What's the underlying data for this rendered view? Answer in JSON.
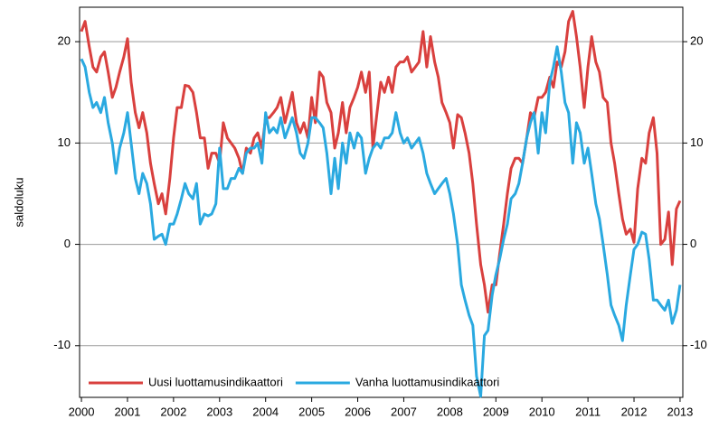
{
  "chart_data": {
    "type": "line",
    "y_label": "saldoluku",
    "xlim": [
      1999.96,
      2013.06
    ],
    "xticks": [
      2000,
      2001,
      2002,
      2003,
      2004,
      2005,
      2006,
      2007,
      2008,
      2009,
      2010,
      2011,
      2012,
      2013
    ],
    "ylim": [
      -15.1,
      23.4
    ],
    "yticks": [
      -10,
      0,
      10,
      20
    ],
    "grid": true,
    "legend": "lower left",
    "x": [
      2000,
      2000.08,
      2000.17,
      2000.25,
      2000.33,
      2000.42,
      2000.5,
      2000.58,
      2000.67,
      2000.75,
      2000.83,
      2000.92,
      2001,
      2001.08,
      2001.17,
      2001.25,
      2001.33,
      2001.42,
      2001.5,
      2001.58,
      2001.67,
      2001.75,
      2001.83,
      2001.92,
      2002,
      2002.08,
      2002.17,
      2002.25,
      2002.33,
      2002.42,
      2002.5,
      2002.58,
      2002.67,
      2002.75,
      2002.83,
      2002.92,
      2003,
      2003.08,
      2003.17,
      2003.25,
      2003.33,
      2003.42,
      2003.5,
      2003.58,
      2003.67,
      2003.75,
      2003.83,
      2003.92,
      2004,
      2004.08,
      2004.17,
      2004.25,
      2004.33,
      2004.42,
      2004.5,
      2004.58,
      2004.67,
      2004.75,
      2004.83,
      2004.92,
      2005,
      2005.08,
      2005.17,
      2005.25,
      2005.33,
      2005.42,
      2005.5,
      2005.58,
      2005.67,
      2005.75,
      2005.83,
      2005.92,
      2006,
      2006.08,
      2006.17,
      2006.25,
      2006.33,
      2006.42,
      2006.5,
      2006.58,
      2006.67,
      2006.75,
      2006.83,
      2006.92,
      2007,
      2007.08,
      2007.17,
      2007.25,
      2007.33,
      2007.42,
      2007.5,
      2007.58,
      2007.67,
      2007.75,
      2007.83,
      2007.92,
      2008,
      2008.08,
      2008.17,
      2008.25,
      2008.33,
      2008.42,
      2008.5,
      2008.58,
      2008.67,
      2008.75,
      2008.83,
      2008.92,
      2009,
      2009.08,
      2009.17,
      2009.25,
      2009.33,
      2009.42,
      2009.5,
      2009.58,
      2009.67,
      2009.75,
      2009.83,
      2009.92,
      2010,
      2010.08,
      2010.17,
      2010.25,
      2010.33,
      2010.42,
      2010.5,
      2010.58,
      2010.67,
      2010.75,
      2010.83,
      2010.92,
      2011,
      2011.08,
      2011.17,
      2011.25,
      2011.33,
      2011.42,
      2011.5,
      2011.58,
      2011.67,
      2011.75,
      2011.83,
      2011.92,
      2012,
      2012.08,
      2012.17,
      2012.25,
      2012.33,
      2012.42,
      2012.5,
      2012.58,
      2012.67,
      2012.75,
      2012.83,
      2012.92,
      2013
    ],
    "series": [
      {
        "name": "Uusi luottamusindikaattori",
        "color": "#d9403e",
        "values": [
          21,
          22,
          19.5,
          17.5,
          17,
          18.5,
          19,
          17,
          14.5,
          15.5,
          17,
          18.5,
          20.3,
          16,
          13,
          11.5,
          13,
          11,
          8,
          6,
          4,
          5,
          3,
          6.5,
          10.5,
          13.5,
          13.5,
          15.7,
          15.6,
          15,
          13,
          10.5,
          10.5,
          7.5,
          9,
          9,
          8,
          12,
          10.5,
          10,
          9.5,
          8.5,
          7,
          9.5,
          9,
          10.5,
          11,
          9.5,
          12.5,
          12.5,
          13,
          13.5,
          14.5,
          12,
          13.5,
          15,
          12,
          11,
          12,
          10.5,
          14.5,
          12,
          17,
          16.5,
          14,
          13,
          9.5,
          11,
          14,
          11,
          13.5,
          14.5,
          15.5,
          17,
          15,
          17,
          9.5,
          13,
          16,
          15,
          16.5,
          15,
          17.5,
          18,
          18,
          18.5,
          17,
          17.5,
          18,
          21,
          17.5,
          20.5,
          18,
          16.5,
          14,
          13,
          12,
          9.5,
          12.8,
          12.5,
          11,
          9,
          6,
          2,
          -2,
          -4,
          -6.7,
          -4,
          -4,
          -1,
          2,
          5,
          7.5,
          8.5,
          8.5,
          8,
          10.5,
          13,
          12.5,
          14.5,
          14.5,
          15,
          16.5,
          15.5,
          18,
          17.5,
          19,
          22,
          23,
          20.5,
          17.5,
          13.5,
          17.5,
          20.5,
          18,
          17,
          14.5,
          14,
          10,
          8,
          5,
          2.5,
          1,
          1.5,
          0.2,
          5.5,
          8.5,
          8,
          11,
          12.5,
          9,
          0,
          0.5,
          3.2,
          -2,
          3.5,
          4.3
        ]
      },
      {
        "name": "Vanha luottamusindikaattori",
        "color": "#2aa9e0",
        "values": [
          18.3,
          17.5,
          15,
          13.5,
          14,
          13,
          14.5,
          12,
          10,
          7,
          9.5,
          11,
          13,
          10,
          6.5,
          5,
          7,
          6,
          4,
          0.5,
          0.8,
          1,
          0,
          2,
          2,
          3,
          4.5,
          6,
          5,
          4.5,
          6,
          2,
          3,
          2.8,
          3,
          4,
          9.5,
          5.5,
          5.5,
          6.5,
          6.5,
          7.5,
          7,
          9,
          9.5,
          9.5,
          10,
          8,
          13,
          11,
          11.5,
          11,
          12.5,
          10.5,
          11.5,
          12.5,
          11,
          9,
          8.5,
          10,
          12.5,
          12.5,
          12,
          11.5,
          9,
          5,
          8.5,
          5.5,
          10,
          8,
          11,
          9.5,
          11,
          10.5,
          7,
          8.5,
          9.5,
          10,
          9.5,
          10.5,
          10.5,
          11,
          13,
          11,
          10,
          10.5,
          9.5,
          10,
          10.5,
          9,
          7,
          6,
          5,
          5.5,
          6,
          6.5,
          5,
          3,
          0,
          -4,
          -5.5,
          -7,
          -8,
          -13,
          -15,
          -9,
          -8.5,
          -5,
          -3,
          -1.5,
          0.5,
          2,
          4.5,
          5,
          6,
          8,
          10.5,
          12,
          13,
          9,
          13,
          11,
          16,
          17.5,
          19.5,
          17,
          14,
          13,
          8,
          12,
          11,
          8,
          9.5,
          7,
          4,
          2.5,
          0,
          -3,
          -6,
          -7,
          -8,
          -9.5,
          -6,
          -3,
          -0.5,
          0,
          1.2,
          1,
          -1.5,
          -5.5,
          -5.5,
          -6,
          -6.5,
          -5.5,
          -7.8,
          -6.5,
          -4
        ]
      }
    ]
  }
}
